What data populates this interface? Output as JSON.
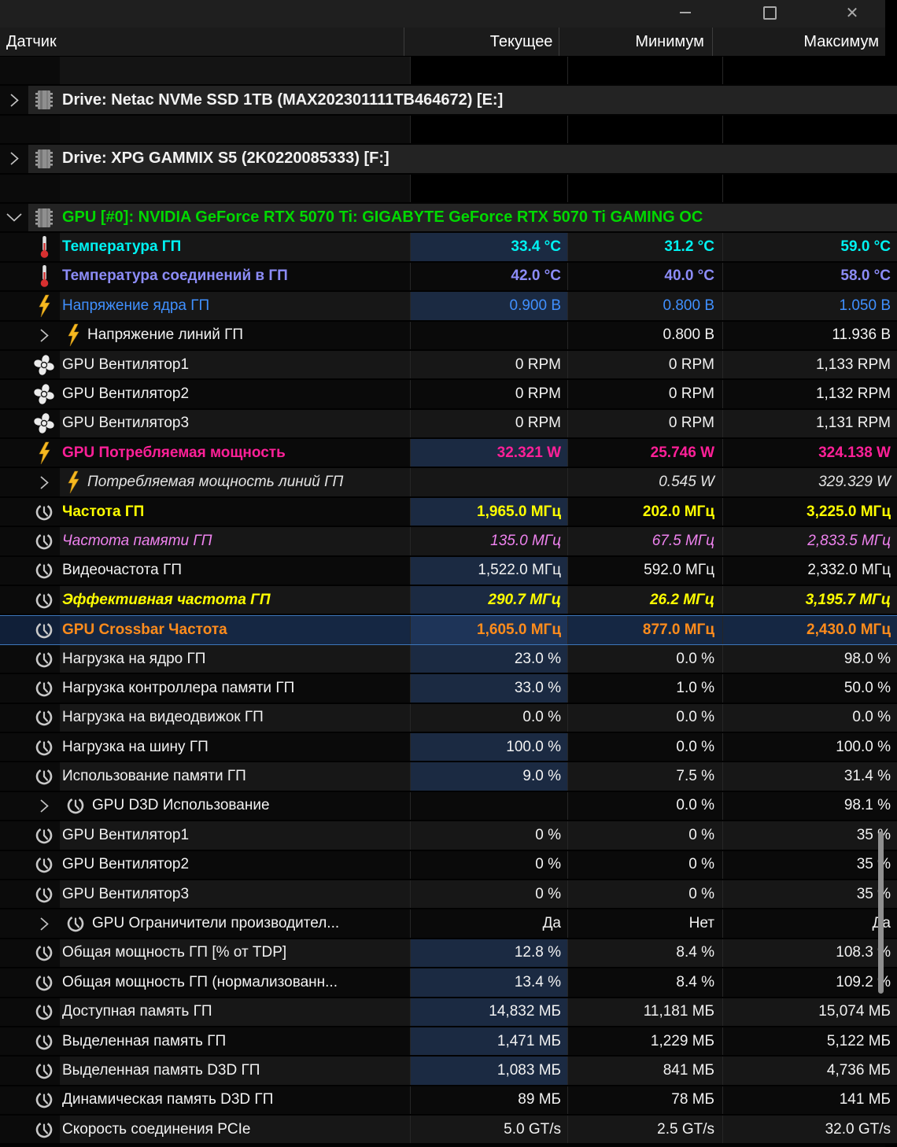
{
  "window": {
    "minimize": "",
    "maximize": "",
    "close": "✕"
  },
  "header": {
    "sensor": "Датчик",
    "current": "Текущее",
    "minimum": "Минимум",
    "maximum": "Максимум"
  },
  "colors": {
    "white": "#f2f2f2",
    "gray_italic": "#e3e3e3",
    "green": "#00d800",
    "cyan": "#00f2f2",
    "purple": "#8c8cf7",
    "blue": "#4090ff",
    "magenta": "#ff2098",
    "yellow": "#ffff00",
    "pink": "#ee82ee",
    "orange": "#ff8c1c",
    "selection_border": "#3d76ba",
    "current_highlight": "#1b2a42"
  },
  "rows": [
    {
      "kind": "spacer",
      "bg": "spacer0",
      "label": "",
      "cur": "",
      "min": "",
      "max": ""
    },
    {
      "kind": "device",
      "arrow": "right",
      "icon": "chip",
      "color": "white",
      "label": "Drive: Netac NVMe SSD 1TB (MAX202301111TB464672) [E:]",
      "cur": "",
      "min": "",
      "max": ""
    },
    {
      "kind": "spacer",
      "bg": "spacer",
      "label": "",
      "cur": "",
      "min": "",
      "max": ""
    },
    {
      "kind": "device",
      "arrow": "right",
      "icon": "chip",
      "color": "white",
      "label": "Drive: XPG GAMMIX S5 (2K0220085333) [F:]",
      "cur": "",
      "min": "",
      "max": ""
    },
    {
      "kind": "spacer",
      "bg": "spacer",
      "label": "",
      "cur": "",
      "min": "",
      "max": ""
    },
    {
      "kind": "device",
      "arrow": "down",
      "icon": "chip",
      "color": "green",
      "label": "GPU [#0]: NVIDIA GeForce RTX 5070 Ti: GIGABYTE GeForce RTX 5070 Ti GAMING OC",
      "cur": "",
      "min": "",
      "max": ""
    },
    {
      "kind": "sensor",
      "bg": "light",
      "icon": "thermometer",
      "color": "cyan",
      "bold": true,
      "hl": true,
      "label": "Температура ГП",
      "cur": "33.4 °C",
      "min": "31.2 °C",
      "max": "59.0 °C"
    },
    {
      "kind": "sensor",
      "bg": "dark",
      "icon": "thermometer",
      "color": "purple",
      "bold": true,
      "label": "Температура соединений в ГП",
      "cur": "42.0 °C",
      "min": "40.0 °C",
      "max": "58.0 °C"
    },
    {
      "kind": "sensor",
      "bg": "light",
      "icon": "bolt",
      "color": "blue",
      "hl": true,
      "label": "Напряжение ядра ГП",
      "cur": "0.900 В",
      "min": "0.800 В",
      "max": "1.050 В"
    },
    {
      "kind": "sensor",
      "bg": "dark",
      "sub": true,
      "icon": "bolt",
      "color": "white",
      "label": "Напряжение линий ГП",
      "cur": "",
      "min": "0.800 В",
      "max": "11.936 В"
    },
    {
      "kind": "sensor",
      "bg": "light",
      "icon": "fan",
      "color": "white",
      "label": "GPU Вентилятор1",
      "cur": "0 RPM",
      "min": "0 RPM",
      "max": "1,133 RPM"
    },
    {
      "kind": "sensor",
      "bg": "dark",
      "icon": "fan",
      "color": "white",
      "label": "GPU Вентилятор2",
      "cur": "0 RPM",
      "min": "0 RPM",
      "max": "1,132 RPM"
    },
    {
      "kind": "sensor",
      "bg": "light",
      "icon": "fan",
      "color": "white",
      "label": "GPU Вентилятор3",
      "cur": "0 RPM",
      "min": "0 RPM",
      "max": "1,131 RPM"
    },
    {
      "kind": "sensor",
      "bg": "dark",
      "icon": "bolt",
      "color": "magenta",
      "bold": true,
      "hl": true,
      "label": "GPU Потребляемая мощность",
      "cur": "32.321 W",
      "min": "25.746 W",
      "max": "324.138 W"
    },
    {
      "kind": "sensor",
      "bg": "light",
      "sub": true,
      "icon": "bolt",
      "color": "gray_italic",
      "italic": true,
      "label": "Потребляемая мощность линий ГП",
      "cur": "",
      "min": "0.545 W",
      "max": "329.329 W"
    },
    {
      "kind": "sensor",
      "bg": "dark",
      "icon": "clock",
      "color": "yellow",
      "bold": true,
      "hl": true,
      "label": "Частота ГП",
      "cur": "1,965.0 МГц",
      "min": "202.0 МГц",
      "max": "3,225.0 МГц"
    },
    {
      "kind": "sensor",
      "bg": "light",
      "icon": "clock",
      "color": "pink",
      "italic": true,
      "label": "Частота памяти ГП",
      "cur": "135.0 МГц",
      "min": "67.5 МГц",
      "max": "2,833.5 МГц"
    },
    {
      "kind": "sensor",
      "bg": "dark",
      "icon": "clock",
      "color": "white",
      "hl": true,
      "label": "Видеочастота ГП",
      "cur": "1,522.0 МГц",
      "min": "592.0 МГц",
      "max": "2,332.0 МГц"
    },
    {
      "kind": "sensor",
      "bg": "light",
      "icon": "clock",
      "color": "yellow",
      "bold": true,
      "italic": true,
      "hl": true,
      "label": "Эффективная частота ГП",
      "cur": "290.7 МГц",
      "min": "26.2 МГц",
      "max": "3,195.7 МГц"
    },
    {
      "kind": "sensor",
      "bg": "dark",
      "sel": true,
      "icon": "clock",
      "color": "orange",
      "bold": true,
      "hl": true,
      "label": "GPU Crossbar Частота",
      "cur": "1,605.0 МГц",
      "min": "877.0 МГц",
      "max": "2,430.0 МГц"
    },
    {
      "kind": "sensor",
      "bg": "light",
      "icon": "clock",
      "color": "white",
      "hl": true,
      "label": "Нагрузка на ядро ГП",
      "cur": "23.0 %",
      "min": "0.0 %",
      "max": "98.0 %"
    },
    {
      "kind": "sensor",
      "bg": "dark",
      "icon": "clock",
      "color": "white",
      "hl": true,
      "label": "Нагрузка контроллера памяти ГП",
      "cur": "33.0 %",
      "min": "1.0 %",
      "max": "50.0 %"
    },
    {
      "kind": "sensor",
      "bg": "light",
      "icon": "clock",
      "color": "white",
      "label": "Нагрузка на видеодвижок ГП",
      "cur": "0.0 %",
      "min": "0.0 %",
      "max": "0.0 %"
    },
    {
      "kind": "sensor",
      "bg": "dark",
      "icon": "clock",
      "color": "white",
      "hl": true,
      "label": "Нагрузка на шину ГП",
      "cur": "100.0 %",
      "min": "0.0 %",
      "max": "100.0 %"
    },
    {
      "kind": "sensor",
      "bg": "light",
      "icon": "clock",
      "color": "white",
      "hl": true,
      "label": "Использование памяти ГП",
      "cur": "9.0 %",
      "min": "7.5 %",
      "max": "31.4 %"
    },
    {
      "kind": "sensor",
      "bg": "dark",
      "sub": true,
      "icon": "clock",
      "color": "white",
      "label": "GPU D3D Использование",
      "cur": "",
      "min": "0.0 %",
      "max": "98.1 %"
    },
    {
      "kind": "sensor",
      "bg": "light",
      "icon": "clock",
      "color": "white",
      "label": "GPU Вентилятор1",
      "cur": "0 %",
      "min": "0 %",
      "max": "35 %"
    },
    {
      "kind": "sensor",
      "bg": "dark",
      "icon": "clock",
      "color": "white",
      "label": "GPU Вентилятор2",
      "cur": "0 %",
      "min": "0 %",
      "max": "35 %"
    },
    {
      "kind": "sensor",
      "bg": "light",
      "icon": "clock",
      "color": "white",
      "label": "GPU Вентилятор3",
      "cur": "0 %",
      "min": "0 %",
      "max": "35 %"
    },
    {
      "kind": "sensor",
      "bg": "dark",
      "sub": true,
      "icon": "clock",
      "color": "white",
      "label": "GPU Ограничители производител...",
      "cur": "Да",
      "min": "Нет",
      "max": "Да"
    },
    {
      "kind": "sensor",
      "bg": "light",
      "icon": "clock",
      "color": "white",
      "hl": true,
      "label": "Общая мощность ГП [% от TDP]",
      "cur": "12.8 %",
      "min": "8.4 %",
      "max": "108.3 %"
    },
    {
      "kind": "sensor",
      "bg": "dark",
      "icon": "clock",
      "color": "white",
      "hl": true,
      "label": "Общая мощность ГП (нормализованн...",
      "cur": "13.4 %",
      "min": "8.4 %",
      "max": "109.2 %"
    },
    {
      "kind": "sensor",
      "bg": "light",
      "icon": "clock",
      "color": "white",
      "hl": true,
      "label": "Доступная память ГП",
      "cur": "14,832 МБ",
      "min": "11,181 МБ",
      "max": "15,074 МБ"
    },
    {
      "kind": "sensor",
      "bg": "dark",
      "icon": "clock",
      "color": "white",
      "hl": true,
      "label": "Выделенная память ГП",
      "cur": "1,471 МБ",
      "min": "1,229 МБ",
      "max": "5,122 МБ"
    },
    {
      "kind": "sensor",
      "bg": "light",
      "icon": "clock",
      "color": "white",
      "hl": true,
      "label": "Выделенная память D3D ГП",
      "cur": "1,083 МБ",
      "min": "841 МБ",
      "max": "4,736 МБ"
    },
    {
      "kind": "sensor",
      "bg": "dark",
      "icon": "clock",
      "color": "white",
      "label": "Динамическая память D3D ГП",
      "cur": "89 МБ",
      "min": "78 МБ",
      "max": "141 МБ"
    },
    {
      "kind": "sensor",
      "bg": "light",
      "icon": "clock",
      "color": "white",
      "label": "Скорость соединения PCIe",
      "cur": "5.0 GT/s",
      "min": "2.5 GT/s",
      "max": "32.0 GT/s"
    }
  ]
}
